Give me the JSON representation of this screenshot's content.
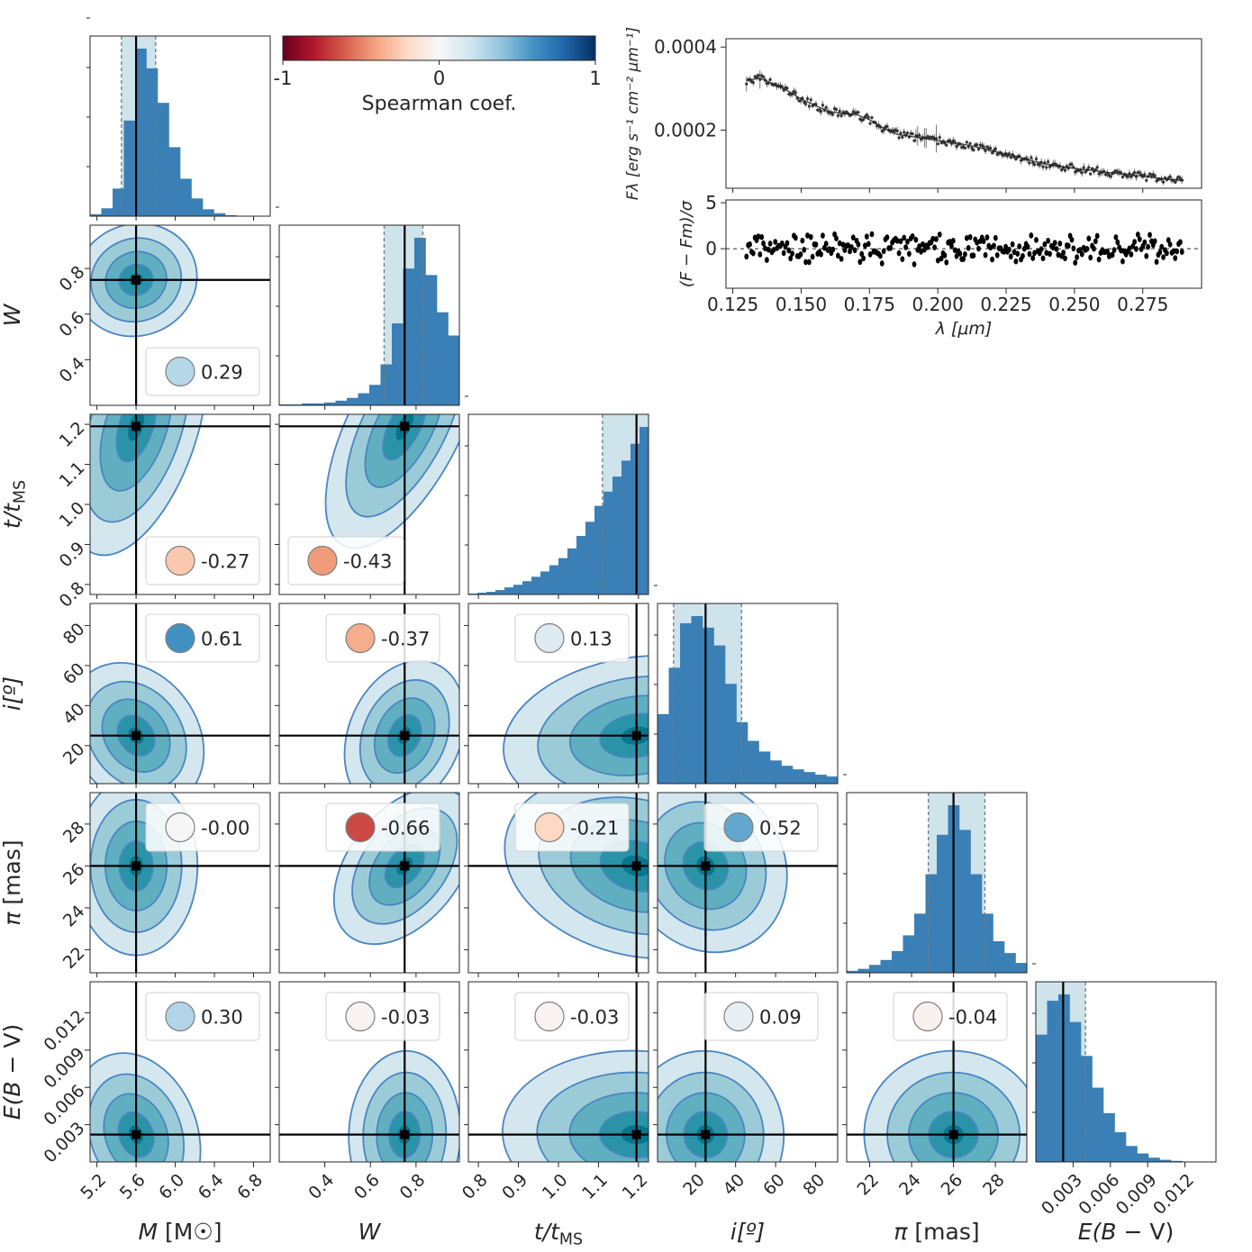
{
  "chart_data": {
    "type": "corner",
    "parameters": [
      {
        "key": "M",
        "label": "M [M☉]",
        "truth": 5.6,
        "range": [
          5.13,
          6.97
        ],
        "ticks": [
          5.2,
          5.6,
          6.0,
          6.4,
          6.8
        ],
        "tick_labels": [
          "5.2",
          "5.6",
          "6.0",
          "6.4",
          "6.8"
        ],
        "ci": [
          5.45,
          5.8
        ]
      },
      {
        "key": "W",
        "label": "W",
        "truth": 0.75,
        "range": [
          0.2,
          0.99
        ],
        "ticks": [
          0.4,
          0.6,
          0.8
        ],
        "tick_labels": [
          "0.4",
          "0.6",
          "0.8"
        ],
        "ci": [
          0.66,
          0.83
        ]
      },
      {
        "key": "t",
        "label": "t/t_MS",
        "truth": 1.195,
        "range": [
          0.775,
          1.225
        ],
        "ticks": [
          0.8,
          0.9,
          1.0,
          1.1,
          1.2
        ],
        "tick_labels": [
          "0.8",
          "0.9",
          "1.0",
          "1.1",
          "1.2"
        ],
        "ci": [
          1.11,
          1.225
        ]
      },
      {
        "key": "i",
        "label": "i[º]",
        "truth": 25,
        "range": [
          1,
          91
        ],
        "ticks": [
          20,
          40,
          60,
          80
        ],
        "tick_labels": [
          "20",
          "40",
          "60",
          "80"
        ],
        "ci": [
          9,
          43
        ]
      },
      {
        "key": "pi",
        "label": "π [mas]",
        "truth": 26.0,
        "range": [
          20.9,
          29.5
        ],
        "ticks": [
          22,
          24,
          26,
          28
        ],
        "tick_labels": [
          "22",
          "24",
          "26",
          "28"
        ],
        "ci": [
          24.8,
          27.5
        ]
      },
      {
        "key": "ebv",
        "label": "E(B − V)",
        "truth": 0.0022,
        "range": [
          0.0,
          0.0145
        ],
        "ticks": [
          0.003,
          0.006,
          0.009,
          0.012
        ],
        "tick_labels": [
          "0.003",
          "0.006",
          "0.009",
          "0.012"
        ],
        "ci": [
          0.0,
          0.004
        ]
      }
    ],
    "histograms": [
      [
        2,
        8,
        28,
        97,
        170,
        150,
        115,
        70,
        38,
        18,
        7,
        3,
        1,
        0,
        0,
        0
      ],
      [
        1,
        1,
        2,
        2,
        3,
        5,
        8,
        13,
        22,
        44,
        88,
        147,
        180,
        140,
        100,
        75
      ],
      [
        1,
        2,
        3,
        5,
        8,
        11,
        15,
        20,
        26,
        33,
        41,
        52,
        66,
        82,
        100,
        116,
        133,
        151,
        170,
        189
      ],
      [
        78,
        130,
        180,
        188,
        175,
        155,
        112,
        69,
        48,
        36,
        26,
        20,
        16,
        13,
        10,
        8
      ],
      [
        2,
        4,
        8,
        13,
        22,
        38,
        60,
        100,
        140,
        170,
        145,
        100,
        60,
        32,
        20,
        10
      ],
      [
        120,
        152,
        158,
        132,
        100,
        70,
        46,
        28,
        15,
        8,
        4,
        2,
        1,
        0,
        0,
        0
      ]
    ],
    "spearman": [
      {
        "pair": [
          "W",
          "M"
        ],
        "value": "0.29"
      },
      {
        "pair": [
          "t",
          "M"
        ],
        "value": "-0.27"
      },
      {
        "pair": [
          "t",
          "W"
        ],
        "value": "-0.43"
      },
      {
        "pair": [
          "i",
          "M"
        ],
        "value": "0.61"
      },
      {
        "pair": [
          "i",
          "W"
        ],
        "value": "-0.37"
      },
      {
        "pair": [
          "i",
          "t"
        ],
        "value": "0.13"
      },
      {
        "pair": [
          "pi",
          "M"
        ],
        "value": "-0.00"
      },
      {
        "pair": [
          "pi",
          "W"
        ],
        "value": "-0.66"
      },
      {
        "pair": [
          "pi",
          "t"
        ],
        "value": "-0.21"
      },
      {
        "pair": [
          "pi",
          "i"
        ],
        "value": "0.52"
      },
      {
        "pair": [
          "ebv",
          "M"
        ],
        "value": "0.30"
      },
      {
        "pair": [
          "ebv",
          "W"
        ],
        "value": "-0.03"
      },
      {
        "pair": [
          "ebv",
          "t"
        ],
        "value": "-0.03"
      },
      {
        "pair": [
          "ebv",
          "i"
        ],
        "value": "0.09"
      },
      {
        "pair": [
          "ebv",
          "pi"
        ],
        "value": "-0.04"
      }
    ],
    "colorbar": {
      "label": "Spearman coef.",
      "range": [
        -1,
        1
      ],
      "ticks": [
        -1,
        0,
        1
      ],
      "tick_labels": [
        "-1",
        "0",
        "1"
      ],
      "cmap": "RdBu"
    },
    "spectrum": {
      "ylabel": "Fλ [erg s⁻¹ cm⁻² μm⁻¹]",
      "xlabel": "λ [μm]",
      "resid_ylabel": "(F − Fm)/σ",
      "xlim": [
        0.1225,
        0.2965
      ],
      "ylim": [
        6e-05,
        0.00042
      ],
      "yticks": [
        0.0002,
        0.0004
      ],
      "ytick_labels": [
        "0.0002",
        "0.0004"
      ],
      "resid_ylim": [
        -4.3,
        5.3
      ],
      "resid_yticks": [
        -5,
        0,
        5
      ],
      "resid_ytick_labels": [
        "",
        "0",
        "5"
      ],
      "xticks": [
        0.125,
        0.15,
        0.175,
        0.2,
        0.225,
        0.25,
        0.275
      ],
      "xtick_labels": [
        "0.125",
        "0.150",
        "0.175",
        "0.200",
        "0.225",
        "0.250",
        "0.275"
      ],
      "flux_curve_x": [
        0.13,
        0.135,
        0.14,
        0.145,
        0.15,
        0.155,
        0.16,
        0.165,
        0.17,
        0.175,
        0.18,
        0.185,
        0.19,
        0.195,
        0.2,
        0.205,
        0.21,
        0.215,
        0.22,
        0.225,
        0.23,
        0.235,
        0.24,
        0.245,
        0.25,
        0.255,
        0.26,
        0.265,
        0.27,
        0.275,
        0.28,
        0.285,
        0.29
      ],
      "flux_curve_y": [
        0.00032,
        0.000325,
        0.00031,
        0.000295,
        0.000275,
        0.00026,
        0.000245,
        0.00024,
        0.000238,
        0.000225,
        0.000205,
        0.00019,
        0.000185,
        0.00018,
        0.000175,
        0.00017,
        0.000165,
        0.000158,
        0.00015,
        0.000142,
        0.000135,
        0.000125,
        0.000118,
        0.000112,
        0.000108,
        0.000104,
        0.0001,
        9.6e-05,
        9.2e-05,
        8.9e-05,
        8.5e-05,
        8.1e-05,
        7.8e-05
      ]
    }
  }
}
